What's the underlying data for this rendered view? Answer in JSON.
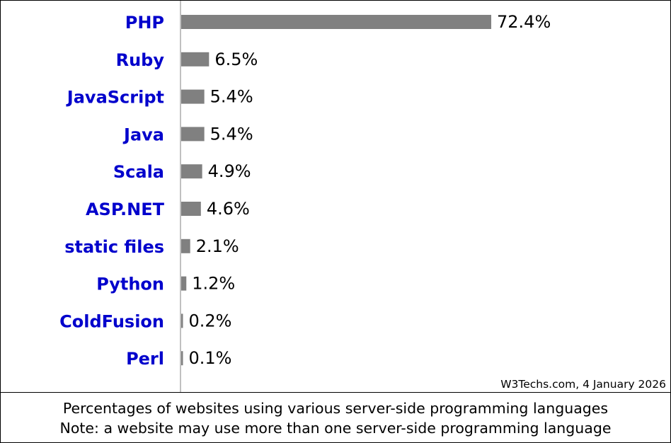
{
  "chart_data": {
    "type": "bar",
    "orientation": "horizontal",
    "categories": [
      "PHP",
      "Ruby",
      "JavaScript",
      "Java",
      "Scala",
      "ASP.NET",
      "static files",
      "Python",
      "ColdFusion",
      "Perl"
    ],
    "values": [
      72.4,
      6.5,
      5.4,
      5.4,
      4.9,
      4.6,
      2.1,
      1.2,
      0.2,
      0.1
    ],
    "value_labels": [
      "72.4%",
      "6.5%",
      "5.4%",
      "5.4%",
      "4.9%",
      "4.6%",
      "2.1%",
      "1.2%",
      "0.2%",
      "0.1%"
    ],
    "xlim": [
      0,
      100
    ],
    "grid": false,
    "legend": "none",
    "source_note": "W3Techs.com, 4 January 2026",
    "caption_lines": [
      "Percentages of websites using various server-side programming languages",
      "Note: a website may use more than one server-side programming language"
    ]
  },
  "colors": {
    "bar": "#808080",
    "category_label": "#0000cc",
    "value_label": "#000000",
    "axis": "#808080"
  }
}
